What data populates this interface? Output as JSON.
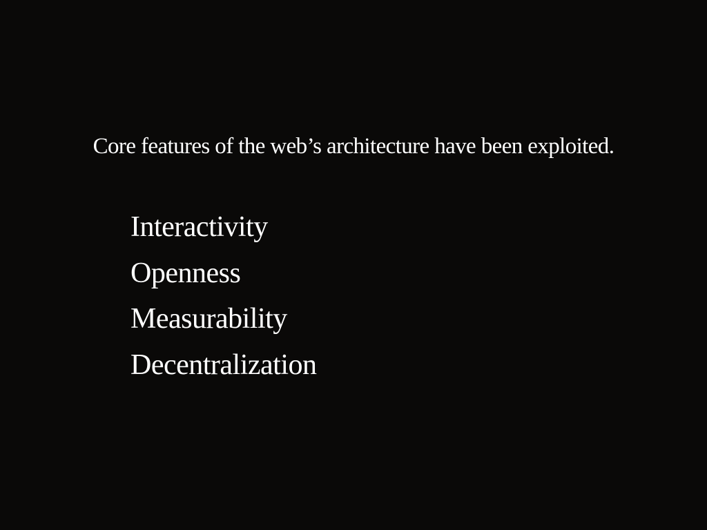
{
  "slide": {
    "headline": "Core features of the web’s architecture have been exploited.",
    "features": [
      "Interactivity",
      "Openness",
      "Measurability",
      "Decentralization"
    ]
  }
}
